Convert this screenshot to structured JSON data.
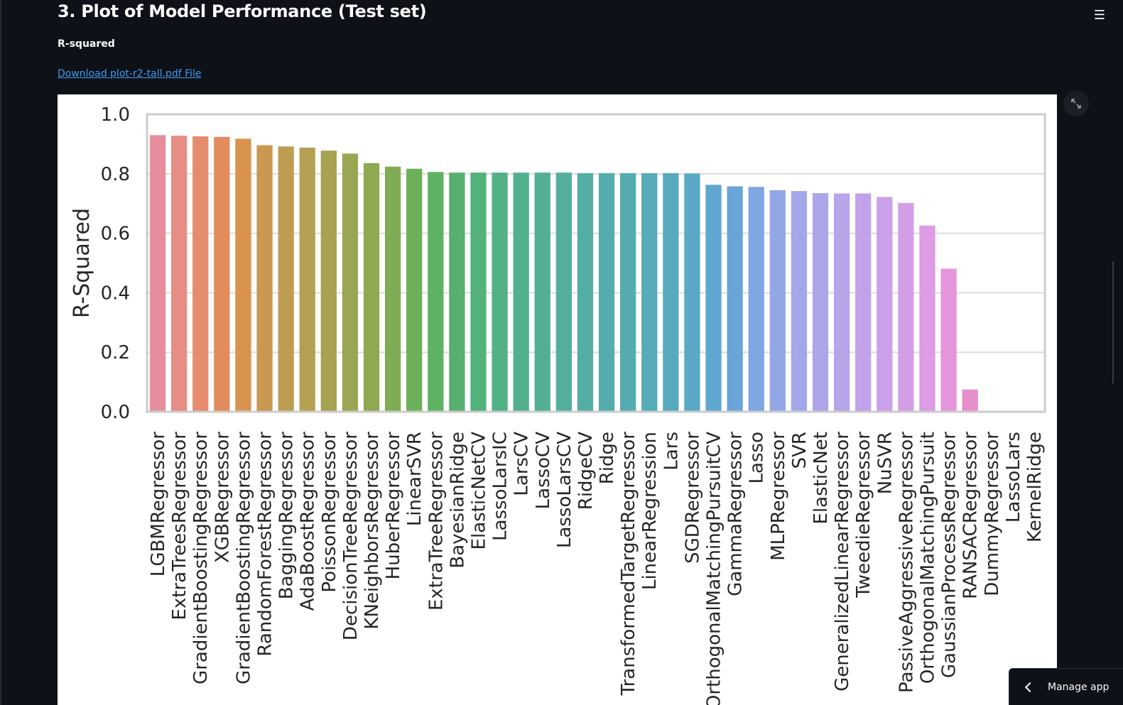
{
  "page": {
    "title": "3. Plot of Model Performance (Test set)",
    "section_label": "R-squared",
    "download_link": "Download plot-r2-tall.pdf File"
  },
  "icons": {
    "menu": "hamburger-menu-icon",
    "fullscreen": "expand-icon",
    "manage_chevron": "chevron-left-icon"
  },
  "manage_app": {
    "label": "Manage app"
  },
  "chart_data": {
    "type": "bar",
    "title": "",
    "xlabel": "",
    "ylabel": "R-Squared",
    "ylim": [
      0,
      1.0
    ],
    "yticks": [
      "0.0",
      "0.2",
      "0.4",
      "0.6",
      "0.8",
      "1.0"
    ],
    "grid": true,
    "categories": [
      "LGBMRegressor",
      "ExtraTreesRegressor",
      "GradientBoostingRegressor",
      "XGBRegressor",
      "GradientBoostingRegressor",
      "RandomForestRegressor",
      "BaggingRegressor",
      "AdaBoostRegressor",
      "PoissonRegressor",
      "DecisionTreeRegressor",
      "KNeighborsRegressor",
      "HuberRegressor",
      "LinearSVR",
      "ExtraTreeRegressor",
      "BayesianRidge",
      "ElasticNetCV",
      "LassoLarsIC",
      "LarsCV",
      "LassoCV",
      "LassoLarsCV",
      "RidgeCV",
      "Ridge",
      "TransformedTargetRegressor",
      "LinearRegression",
      "Lars",
      "SGDRegressor",
      "OrthogonalMatchingPursuitCV",
      "GammaRegressor",
      "Lasso",
      "MLPRegressor",
      "SVR",
      "ElasticNet",
      "GeneralizedLinearRegressor",
      "TweedieRegressor",
      "NuSVR",
      "PassiveAggressiveRegressor",
      "OrthogonalMatchingPursuit",
      "GaussianProcessRegressor",
      "RANSACRegressor",
      "DummyRegressor",
      "LassoLars",
      "KernelRidge"
    ],
    "values": [
      0.93,
      0.928,
      0.926,
      0.924,
      0.918,
      0.896,
      0.892,
      0.888,
      0.878,
      0.868,
      0.836,
      0.824,
      0.817,
      0.806,
      0.804,
      0.804,
      0.804,
      0.804,
      0.804,
      0.804,
      0.802,
      0.802,
      0.802,
      0.802,
      0.802,
      0.801,
      0.763,
      0.758,
      0.756,
      0.745,
      0.742,
      0.735,
      0.734,
      0.734,
      0.722,
      0.702,
      0.626,
      0.481,
      0.075,
      0.0,
      0.0,
      0.0
    ],
    "colors": [
      "#e68e9b",
      "#e68d85",
      "#e58c6d",
      "#e28c5e",
      "#d9934f",
      "#c99951",
      "#bd9d52",
      "#b3a053",
      "#a8a353",
      "#9ba653",
      "#8fa952",
      "#7fac54",
      "#6db05a",
      "#5db362",
      "#57b06e",
      "#53b27a",
      "#52b185",
      "#52b08e",
      "#52af96",
      "#53ae9d",
      "#53aea3",
      "#54adaa",
      "#55acb0",
      "#55abb7",
      "#57aabe",
      "#5aa8c6",
      "#5fa6d0",
      "#6aa5da",
      "#7fa7e2",
      "#93a7e6",
      "#a1a7e8",
      "#aca6e9",
      "#b7a4e9",
      "#c1a2ea",
      "#caa1e9",
      "#d29fe7",
      "#dc9be4",
      "#e495dc",
      "#e78fcd",
      "#e68ec0",
      "#e68eb3",
      "#e68ea6"
    ]
  }
}
